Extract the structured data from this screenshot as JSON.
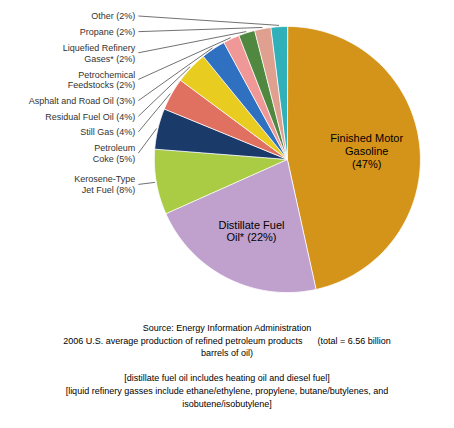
{
  "chart_data": {
    "type": "pie",
    "categories": [
      "Finished Motor\nGasoline\n(47%)",
      "Distillate Fuel\nOil* (22%)",
      "Kerosene-Type\nJet Fuel (8%)",
      "Petroleum\nCoke (5%)",
      "Still Gas (4%)",
      "Residual Fuel Oil (4%)",
      "Asphalt and Road Oil (3%)",
      "Petrochemical\nFeedstocks (2%)",
      "Liquefied Refinery\nGases* (2%)",
      "Propane (2%)",
      "Other (2%)"
    ],
    "values": [
      47,
      22,
      8,
      5,
      4,
      4,
      3,
      2,
      2,
      2,
      2
    ],
    "colors": [
      "#D4941A",
      "#C0A0CC",
      "#AACC44",
      "#1A3A6A",
      "#E07060",
      "#E8CC20",
      "#3070C0",
      "#F09898",
      "#508840",
      "#E0A090",
      "#30B0B8"
    ],
    "caption": "Source: Energy Information Administration\n2006 U.S. average production of refined petroleum products      (total = 6.56 billion\nbarrels of oil)\n\n[distillate fuel oil includes heating oil and diesel fuel]\n[liquid refinery gasses include ethane/ethylene, propylene, butane/butylenes, and\nisobutene/isobutylene]"
  }
}
